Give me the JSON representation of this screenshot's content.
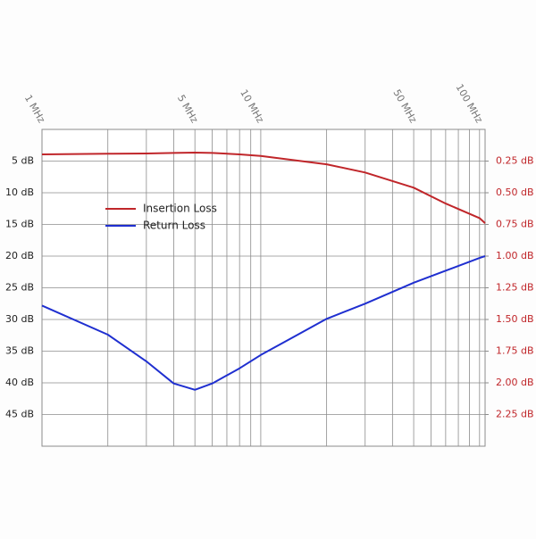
{
  "chart_data": {
    "type": "line",
    "x": [
      1,
      2,
      3,
      4,
      5,
      6,
      8,
      10,
      20,
      30,
      50,
      70,
      100,
      106
    ],
    "xlog": true,
    "xlim": [
      1,
      106
    ],
    "xticks": [
      {
        "value": 1,
        "label": "1 MHz"
      },
      {
        "value": 5,
        "label": "5 MHz"
      },
      {
        "value": 10,
        "label": "10 MHz"
      },
      {
        "value": 50,
        "label": "50 MHz"
      },
      {
        "value": 100,
        "label": "100 MHz"
      }
    ],
    "xminorticks": [
      2,
      3,
      4,
      6,
      7,
      8,
      9,
      20,
      30,
      40,
      60,
      70,
      80,
      90
    ],
    "ylim": [
      50,
      0
    ],
    "yticks": [
      {
        "value": 5,
        "label": "5 dB"
      },
      {
        "value": 10,
        "label": "10 dB"
      },
      {
        "value": 15,
        "label": "15 dB"
      },
      {
        "value": 20,
        "label": "20 dB"
      },
      {
        "value": 25,
        "label": "25 dB"
      },
      {
        "value": 30,
        "label": "30 dB"
      },
      {
        "value": 35,
        "label": "35 dB"
      },
      {
        "value": 40,
        "label": "40 dB"
      },
      {
        "value": 45,
        "label": "45 dB"
      }
    ],
    "y2lim": [
      2.5,
      0
    ],
    "y2ticks": [
      {
        "value": 0.25,
        "label": "0.25 dB"
      },
      {
        "value": 0.5,
        "label": "0.50 dB"
      },
      {
        "value": 0.75,
        "label": "0.75 dB"
      },
      {
        "value": 1,
        "label": "1.00 dB"
      },
      {
        "value": 1.25,
        "label": "1.25 dB"
      },
      {
        "value": 1.5,
        "label": "1.50 dB"
      },
      {
        "value": 1.75,
        "label": "1.75 dB"
      },
      {
        "value": 2,
        "label": "2.00 dB"
      },
      {
        "value": 2.25,
        "label": "2.25 dB"
      }
    ],
    "y2color": "#c0262a",
    "grid": true,
    "series": [
      {
        "name": "Insertion Loss",
        "color": "#c0262a",
        "axis": "y2",
        "values": [
          0.197,
          0.192,
          0.19,
          0.186,
          0.183,
          0.186,
          0.197,
          0.21,
          0.275,
          0.34,
          0.46,
          0.585,
          0.7,
          0.74
        ]
      },
      {
        "name": "Return Loss",
        "color": "#1f2fd0",
        "values": [
          27.8,
          32.4,
          36.6,
          40.1,
          41.1,
          40.1,
          37.7,
          35.6,
          29.9,
          27.5,
          24.2,
          22.3,
          20.3,
          20.0
        ]
      }
    ]
  }
}
